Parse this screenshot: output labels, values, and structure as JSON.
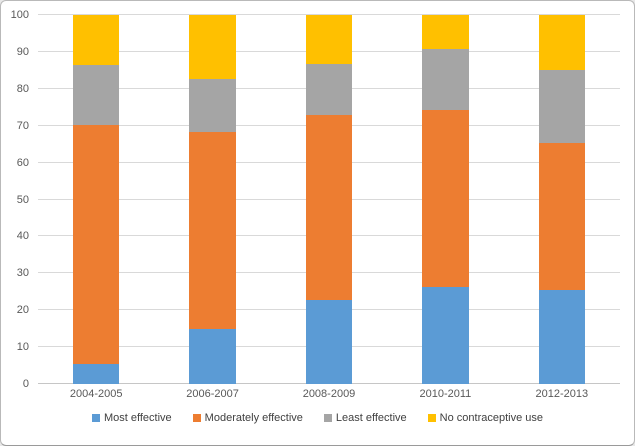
{
  "chart_data": {
    "type": "bar",
    "stacked": true,
    "stacked_percent": true,
    "title": "",
    "xlabel": "",
    "ylabel": "",
    "categories": [
      "2004-2005",
      "2006-2007",
      "2008-2009",
      "2010-2011",
      "2012-2013"
    ],
    "series": [
      {
        "name": "Most effective",
        "color": "#5b9bd5",
        "values": [
          5.4,
          14.8,
          22.8,
          26.2,
          25.4
        ]
      },
      {
        "name": "Moderately effective",
        "color": "#ed7d31",
        "values": [
          64.9,
          53.5,
          50.0,
          48.1,
          40.0
        ]
      },
      {
        "name": "Least effective",
        "color": "#a5a5a5",
        "values": [
          16.2,
          14.4,
          13.9,
          16.4,
          19.8
        ]
      },
      {
        "name": "No contraceptive use",
        "color": "#ffc000",
        "values": [
          13.5,
          17.3,
          13.3,
          9.3,
          14.8
        ]
      }
    ],
    "ylim": [
      0,
      100
    ],
    "ytick_step": 10,
    "ytick_labels": [
      "0",
      "10",
      "20",
      "30",
      "40",
      "50",
      "60",
      "70",
      "80",
      "90",
      "100"
    ],
    "grid": true,
    "legend_position": "bottom"
  },
  "style": {
    "grid_color": "#d9d9d9",
    "axis_line_color": "#c6c6c6",
    "tick_label_color": "#595959",
    "legend_label_color": "#404040",
    "frame_border_color": "#b9b9b9",
    "background_color": "#ffffff"
  }
}
